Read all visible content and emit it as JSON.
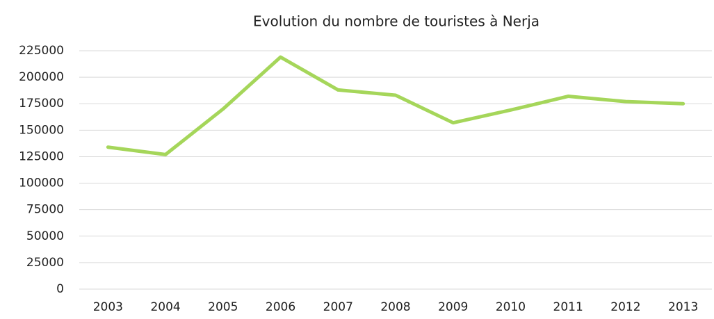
{
  "chart_data": {
    "type": "line",
    "title": "Evolution du nombre de touristes à Nerja",
    "categories": [
      "2003",
      "2004",
      "2005",
      "2006",
      "2007",
      "2008",
      "2009",
      "2010",
      "2011",
      "2012",
      "2013"
    ],
    "values": [
      134000,
      127000,
      170000,
      219000,
      188000,
      183000,
      157000,
      169000,
      182000,
      177000,
      175000
    ],
    "color": "#a5d65a",
    "ylim": [
      0,
      225000
    ],
    "yticks": [
      0,
      25000,
      50000,
      75000,
      100000,
      125000,
      150000,
      175000,
      200000,
      225000
    ],
    "grid": true
  }
}
